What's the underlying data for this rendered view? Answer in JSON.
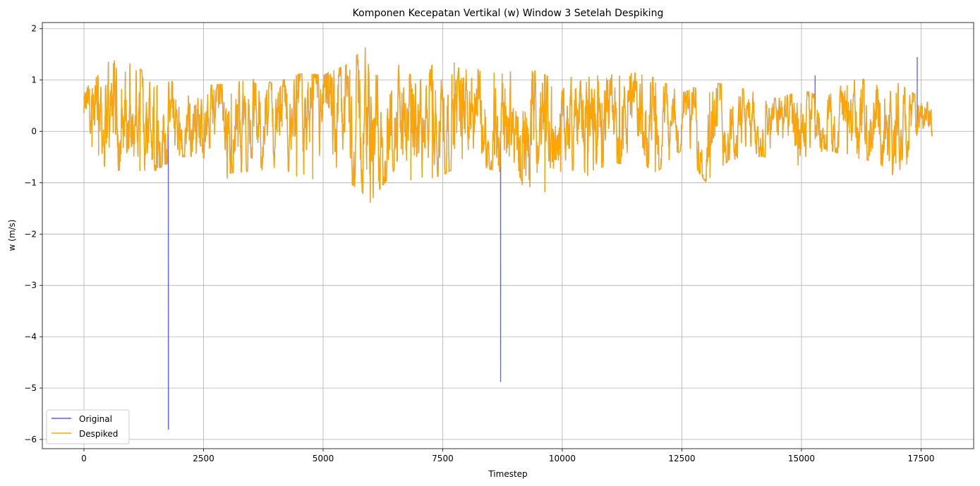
{
  "chart_data": {
    "type": "line",
    "title": "Komponen Kecepatan Vertikal (w) Window 3 Setelah Despiking",
    "xlabel": "Timestep",
    "ylabel": "w (m/s)",
    "xlim": [
      -870,
      18600
    ],
    "ylim": [
      -6.18,
      2.12
    ],
    "xticks": [
      0,
      2500,
      5000,
      7500,
      10000,
      12500,
      15000,
      17500
    ],
    "xtick_labels": [
      "0",
      "2500",
      "5000",
      "7500",
      "10000",
      "12500",
      "15000",
      "17500"
    ],
    "yticks": [
      -6,
      -5,
      -4,
      -3,
      -2,
      -1,
      0,
      1,
      2
    ],
    "ytick_labels": [
      "−6",
      "−5",
      "−4",
      "−3",
      "−2",
      "−1",
      "0",
      "1",
      "2"
    ],
    "grid": true,
    "legend": "lower-left",
    "n_points": 17740,
    "series": [
      {
        "name": "Original",
        "color": "#5b5bf5",
        "spikes": [
          {
            "x": 1765,
            "y": -5.8
          },
          {
            "x": 8710,
            "y": -4.87
          },
          {
            "x": 15285,
            "y": 1.08
          },
          {
            "x": 17420,
            "y": 1.44
          }
        ]
      },
      {
        "name": "Despiked",
        "color": "#ffa500",
        "envelope": {
          "x": [
            0,
            500,
            1000,
            1500,
            2000,
            2500,
            3000,
            3500,
            4000,
            4500,
            5000,
            5500,
            6000,
            6500,
            7000,
            7500,
            8000,
            8500,
            9000,
            9500,
            10000,
            10500,
            11000,
            11500,
            12000,
            12500,
            13000,
            13500,
            14000,
            14500,
            15000,
            15500,
            16000,
            16500,
            17000,
            17500,
            17700
          ],
          "upper": [
            0.8,
            1.45,
            1.35,
            0.9,
            0.95,
            0.85,
            0.8,
            0.95,
            0.85,
            1.05,
            1.0,
            1.25,
            1.7,
            1.4,
            0.8,
            1.6,
            1.25,
            1.2,
            1.1,
            1.0,
            0.85,
            1.2,
            1.1,
            1.15,
            0.95,
            0.7,
            0.8,
            0.85,
            0.7,
            0.5,
            0.7,
            0.6,
            1.0,
            1.0,
            0.8,
            0.6,
            0.5
          ],
          "lower": [
            -0.2,
            -0.7,
            -0.75,
            -0.85,
            -0.5,
            -0.55,
            -0.95,
            -0.85,
            -0.8,
            -0.9,
            -1.0,
            -1.0,
            -1.4,
            -0.7,
            -1.1,
            -0.8,
            -0.5,
            -0.75,
            -0.9,
            -1.4,
            -0.75,
            -0.9,
            -0.65,
            -0.6,
            -0.85,
            -0.4,
            -1.15,
            -0.6,
            -0.55,
            -0.65,
            -0.75,
            -0.4,
            -0.5,
            -0.6,
            -1.05,
            -0.3,
            -0.15
          ]
        }
      }
    ]
  }
}
